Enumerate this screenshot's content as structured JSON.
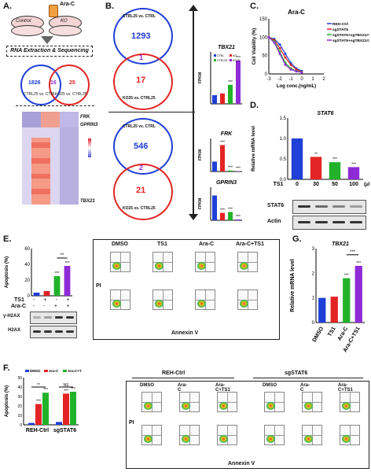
{
  "panels": {
    "A": {
      "label": "A.",
      "drug": "Ara-C",
      "dish_left": "Control",
      "dish_right": "KO",
      "step": "RNA Extraction & Sequencing",
      "venn": {
        "left_value": "1826",
        "center_value": "16",
        "right_value": "25",
        "left_label": "CTRL25 vs. CTRL",
        "right_label": "KO25 vs. CTRL25"
      },
      "genes": [
        "FRK",
        "GPRIN3",
        "TBX21"
      ]
    },
    "B": {
      "label": "B.",
      "top_venn": {
        "top_label": "CTRL25 vs. CTRL",
        "top_value": "1293",
        "center_value": "1",
        "bottom_value": "17",
        "bottom_label": "KO25 vs. CTRL25"
      },
      "bottom_venn": {
        "top_label": "CTRL25 vs. CTRL",
        "top_value": "546",
        "center_value": "2",
        "bottom_value": "21",
        "bottom_label": "KO25 vs. CTRL25"
      },
      "gene_tbx21": "TBX21",
      "gene_frk": "FRK",
      "gene_gprin3": "GPRIN3",
      "ylabel": "FPKM",
      "legend": [
        "CTRL",
        "KO",
        "CTRL25",
        "KO25"
      ],
      "sig": "***"
    },
    "C": {
      "label": "C.",
      "title": "Ara-C",
      "xlabel": "Log conc.(ng/mL)",
      "ylabel": "Cell Viability (%)",
      "legend": [
        "REH-Ctrl",
        "sgSTAT6",
        "sgSTAT6+sgTBX21#1",
        "sgSTAT6+sgTBX21#2"
      ]
    },
    "D": {
      "label": "D.",
      "title": "STAT6",
      "ylabel": "Relative mRNA level",
      "xprefix": "TS1",
      "unit": "(μM)",
      "blots": [
        "STAT6",
        "Actin"
      ],
      "sig": [
        "**",
        "***",
        "***"
      ]
    },
    "E": {
      "label": "E.",
      "ylabel": "Apoptosis (%)",
      "row_ts1": "TS1",
      "row_arac": "Ara-C",
      "ts1_signs": [
        "-",
        "+",
        "-",
        "+"
      ],
      "arac_signs": [
        "-",
        "-",
        "+",
        "+"
      ],
      "blots": [
        "γ-H2AX",
        "H2AX"
      ],
      "flow_titles": [
        "DMSO",
        "TS1",
        "Ara-C",
        "Ara-C+TS1"
      ],
      "flow_y": "PI",
      "flow_x": "Annexin V",
      "sig": [
        "**",
        "***",
        "***"
      ]
    },
    "F": {
      "label": "F.",
      "ylabel": "Apoptosis (%)",
      "legend": [
        "DMSO",
        "Ara-C",
        "Ara-C+TS1"
      ],
      "groups": [
        "REH-Ctrl",
        "sgSTAT6"
      ],
      "flow_groups": [
        "REH-Ctrl",
        "sgSTAT6"
      ],
      "flow_titles": [
        "DMSO",
        "Ara-C",
        "Ara-C+TS1",
        "DMSO",
        "Ara-C",
        "Ara-C+TS1"
      ],
      "flow_y": "PI",
      "flow_x": "Annexin V",
      "sig": [
        "**",
        "NS",
        "***",
        "***",
        "***",
        "***"
      ]
    },
    "G": {
      "label": "G.",
      "title": "TBX21",
      "ylabel": "Relative mRNA level",
      "sig": [
        "***",
        "***",
        "***"
      ]
    }
  },
  "colors": {
    "blue": "#1f3fd6",
    "red": "#e32424",
    "green": "#22b22a",
    "purple": "#8e2bd6"
  },
  "chart_data": [
    {
      "id": "B-TBX21",
      "type": "bar",
      "title": "TBX21",
      "ylabel": "FPKM",
      "categories": [
        "CTRL",
        "KO",
        "CTRL25",
        "KO25"
      ],
      "values": [
        1.0,
        1.2,
        2.2,
        5.0
      ],
      "ylim": [
        0,
        6
      ]
    },
    {
      "id": "B-FRK",
      "type": "bar",
      "title": "FRK",
      "ylabel": "FPKM",
      "categories": [
        "CTRL",
        "KO",
        "CTRL25",
        "KO25"
      ],
      "values": [
        3.0,
        8.0,
        0.3,
        0.1
      ],
      "ylim": [
        0,
        10
      ]
    },
    {
      "id": "B-GPRIN3",
      "type": "bar",
      "title": "GPRIN3",
      "ylabel": "FPKM",
      "categories": [
        "CTRL",
        "KO",
        "CTRL25",
        "KO25"
      ],
      "values": [
        3.0,
        0.9,
        1.0,
        0.1
      ],
      "ylim": [
        0,
        4
      ]
    },
    {
      "id": "C",
      "type": "line",
      "title": "Ara-C",
      "xlabel": "Log conc.(ng/mL)",
      "ylabel": "Cell Viability (%)",
      "x": [
        -3,
        -2.5,
        -2,
        -1.5,
        -1,
        -0.5,
        0
      ],
      "series": [
        {
          "name": "REH-Ctrl",
          "values": [
            100,
            95,
            80,
            55,
            30,
            15,
            8
          ]
        },
        {
          "name": "sgSTAT6",
          "values": [
            100,
            92,
            70,
            45,
            25,
            12,
            6
          ]
        },
        {
          "name": "sgSTAT6+sgTBX21#1",
          "values": [
            100,
            88,
            60,
            30,
            15,
            8,
            5
          ]
        },
        {
          "name": "sgSTAT6+sgTBX21#2",
          "values": [
            100,
            85,
            55,
            25,
            12,
            7,
            4
          ]
        }
      ],
      "ylim": [
        0,
        150
      ],
      "xlim": [
        -3,
        2
      ]
    },
    {
      "id": "D",
      "type": "bar",
      "title": "STAT6",
      "ylabel": "Relative mRNA level",
      "categories": [
        "0",
        "30",
        "50",
        "100"
      ],
      "values": [
        1.0,
        0.55,
        0.42,
        0.3
      ],
      "ylim": [
        0,
        1.5
      ]
    },
    {
      "id": "E",
      "type": "bar",
      "ylabel": "Apoptosis (%)",
      "categories": [
        "1",
        "2",
        "3",
        "4"
      ],
      "values": [
        4,
        6,
        25,
        38
      ],
      "ylim": [
        0,
        60
      ]
    },
    {
      "id": "F",
      "type": "bar",
      "ylabel": "Apoptosis (%)",
      "categories": [
        "REH-Ctrl",
        "sgSTAT6"
      ],
      "series": [
        {
          "name": "DMSO",
          "values": [
            2,
            3
          ]
        },
        {
          "name": "Ara-C",
          "values": [
            22,
            33
          ]
        },
        {
          "name": "Ara-C+TS1",
          "values": [
            34,
            35
          ]
        }
      ],
      "ylim": [
        0,
        50
      ]
    },
    {
      "id": "G",
      "type": "bar",
      "title": "TBX21",
      "ylabel": "Relative mRNA level",
      "categories": [
        "DMSO",
        "TS1",
        "Ara-C",
        "Ara-C+TS1"
      ],
      "values": [
        1.0,
        1.05,
        1.8,
        2.3
      ],
      "ylim": [
        0,
        3
      ]
    }
  ]
}
